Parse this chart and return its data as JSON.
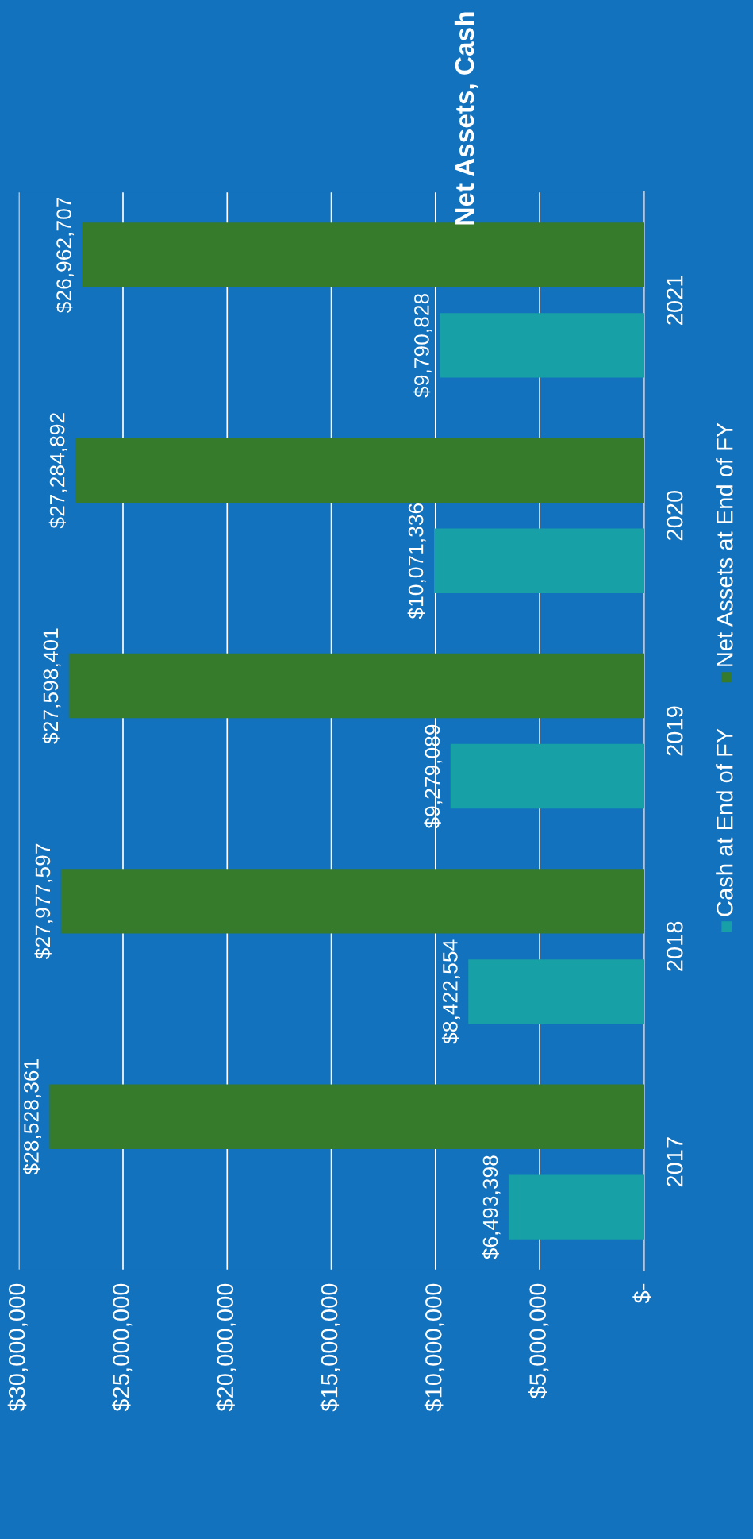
{
  "chart_data": {
    "type": "bar",
    "orientation": "horizontal",
    "title": "Net Assets, Cash",
    "categories": [
      "2021",
      "2020",
      "2019",
      "2018",
      "2017"
    ],
    "series": [
      {
        "name": "Net Assets at End of FY",
        "color": "#367a2c",
        "values": [
          26962707,
          27284892,
          27598401,
          27977597,
          28528361
        ],
        "value_labels": [
          "$26,962,707",
          "$27,284,892",
          "$27,598,401",
          "$27,977,597",
          "$28,528,361"
        ]
      },
      {
        "name": "Cash at End of FY",
        "color": "#17a0a6",
        "values": [
          9790828,
          10071336,
          9279089,
          8422554,
          6493398
        ],
        "value_labels": [
          "$9,790,828",
          "$10,071,336",
          "$9,279,089",
          "$8,422,554",
          "$6,493,398"
        ]
      }
    ],
    "xlim": [
      30000000,
      0
    ],
    "xticks": [
      {
        "value": 30000000,
        "label": "$30,000,000"
      },
      {
        "value": 25000000,
        "label": "$25,000,000"
      },
      {
        "value": 20000000,
        "label": "$20,000,000"
      },
      {
        "value": 15000000,
        "label": "$15,000,000"
      },
      {
        "value": 10000000,
        "label": "$10,000,000"
      },
      {
        "value": 5000000,
        "label": "$5,000,000"
      },
      {
        "value": 0,
        "label": "$-"
      }
    ],
    "grid": "x",
    "legend": "right"
  }
}
